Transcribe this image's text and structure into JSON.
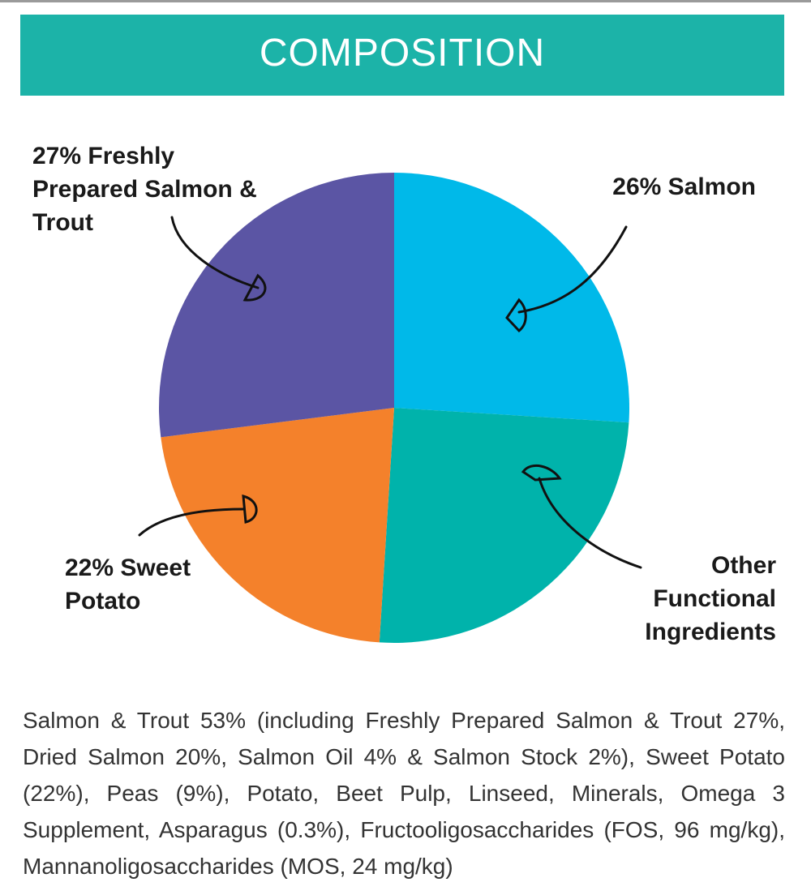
{
  "chart_data": {
    "type": "pie",
    "title": "COMPOSITION",
    "categories": [
      "26% Salmon",
      "Other Functional Ingredients",
      "22% Sweet Potato",
      "27% Freshly Prepared Salmon & Trout"
    ],
    "values": [
      26,
      25,
      22,
      27
    ],
    "colors": [
      "#00b9e9",
      "#00b3ab",
      "#f4812b",
      "#5b55a4"
    ]
  },
  "composition_text": "Salmon & Trout 53% (including Freshly Prepared Salmon & Trout 27%, Dried Salmon 20%, Salmon Oil 4% & Salmon Stock 2%), Sweet Potato (22%), Peas (9%), Potato, Beet Pulp, Linseed, Minerals, Omega 3 Supplement, Asparagus (0.3%), Fructooligosaccharides (FOS, 96 mg/kg), Mannanoligosaccharides (MOS, 24 mg/kg)"
}
